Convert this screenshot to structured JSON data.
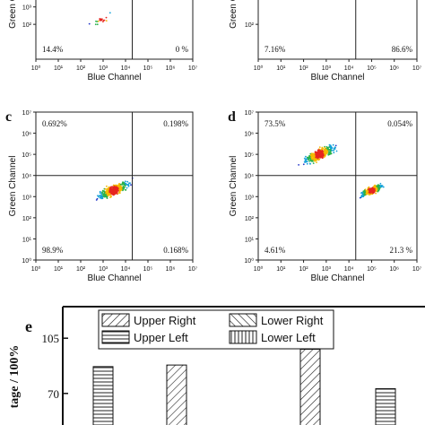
{
  "chart_data": [
    {
      "type": "scatter",
      "panel_label": "",
      "xlabel": "Blue Channel",
      "ylabel": "Green Channel",
      "x_scale": "log",
      "xlim": [
        1,
        10000000
      ],
      "y_scale": "log",
      "ylim": [
        1,
        10000000
      ],
      "x_tick_labels": [
        "10⁰",
        "10¹",
        "10²",
        "10³",
        "10⁴",
        "10⁵",
        "10⁶",
        "10⁷"
      ],
      "y_tick_labels": [
        "10²",
        "10³"
      ],
      "gate": {
        "x": 20000,
        "y": 20000
      },
      "quadrant_percentages": {
        "upper_left": "",
        "upper_right": "",
        "lower_left": "14.4%",
        "lower_right": "0 %"
      },
      "clusters": [
        {
          "x_center": 1000,
          "y_center": 200,
          "points": 20
        }
      ]
    },
    {
      "type": "scatter",
      "panel_label": "",
      "xlabel": "Blue Channel",
      "ylabel": "Green Channel",
      "x_scale": "log",
      "xlim": [
        1,
        10000000
      ],
      "y_scale": "log",
      "ylim": [
        1,
        10000000
      ],
      "x_tick_labels": [
        "10⁰",
        "10¹",
        "10²",
        "10³",
        "10⁴",
        "10⁵",
        "10⁶",
        "10⁷"
      ],
      "y_tick_labels": [
        "10²"
      ],
      "gate": {
        "x": 20000,
        "y": 20000
      },
      "quadrant_percentages": {
        "upper_left": "",
        "upper_right": "",
        "lower_left": "7.16%",
        "lower_right": "86.6%"
      },
      "clusters": [
        {
          "x_center": 25000,
          "y_center": 15000,
          "points": 300
        }
      ]
    },
    {
      "type": "scatter",
      "panel_label": "c",
      "xlabel": "Blue Channel",
      "ylabel": "Green Channel",
      "x_scale": "log",
      "xlim": [
        1,
        10000000
      ],
      "y_scale": "log",
      "ylim": [
        1,
        10000000
      ],
      "x_tick_labels": [
        "10⁰",
        "10¹",
        "10²",
        "10³",
        "10⁴",
        "10⁵",
        "10⁶",
        "10⁷"
      ],
      "y_tick_labels": [
        "10⁰",
        "10¹",
        "10²",
        "10³",
        "10⁴",
        "10⁵",
        "10⁶",
        "10⁷"
      ],
      "gate": {
        "x": 20000,
        "y": 10000
      },
      "quadrant_percentages": {
        "upper_left": "0.692%",
        "upper_right": "0.198%",
        "lower_left": "98.9%",
        "lower_right": "0.168%"
      },
      "clusters": [
        {
          "x_center": 3000,
          "y_center": 2000,
          "points": 500
        }
      ]
    },
    {
      "type": "scatter",
      "panel_label": "d",
      "xlabel": "Blue Channel",
      "ylabel": "Green Channel",
      "x_scale": "log",
      "xlim": [
        1,
        10000000
      ],
      "y_scale": "log",
      "ylim": [
        1,
        10000000
      ],
      "x_tick_labels": [
        "10⁰",
        "10¹",
        "10²",
        "10³",
        "10⁴",
        "10⁵",
        "10⁶",
        "10⁷"
      ],
      "y_tick_labels": [
        "10⁰",
        "10¹",
        "10²",
        "10³",
        "10⁴",
        "10⁵",
        "10⁶",
        "10⁷"
      ],
      "gate": {
        "x": 20000,
        "y": 10000
      },
      "quadrant_percentages": {
        "upper_left": "73.5%",
        "upper_right": "0.054%",
        "lower_left": "4.61%",
        "lower_right": "21.3 %"
      },
      "clusters": [
        {
          "x_center": 500,
          "y_center": 100000,
          "points": 600
        },
        {
          "x_center": 100000,
          "y_center": 2000,
          "points": 350
        }
      ]
    },
    {
      "type": "bar",
      "panel_label": "e",
      "ylabel": "tage / 100%",
      "y_tick_labels": [
        "105",
        "70"
      ],
      "ylim": [
        50,
        125
      ],
      "legend": {
        "placement": "top",
        "entries": [
          "Upper Right",
          "Lower Right",
          "Upper Left",
          "Lower Left"
        ]
      },
      "bars": [
        {
          "series": "Upper Left",
          "value": 87
        },
        {
          "series": "Upper Right",
          "value": 88
        },
        {
          "series": "Upper Right",
          "value": 98
        },
        {
          "series": "Upper Left",
          "value": 73
        }
      ]
    }
  ]
}
